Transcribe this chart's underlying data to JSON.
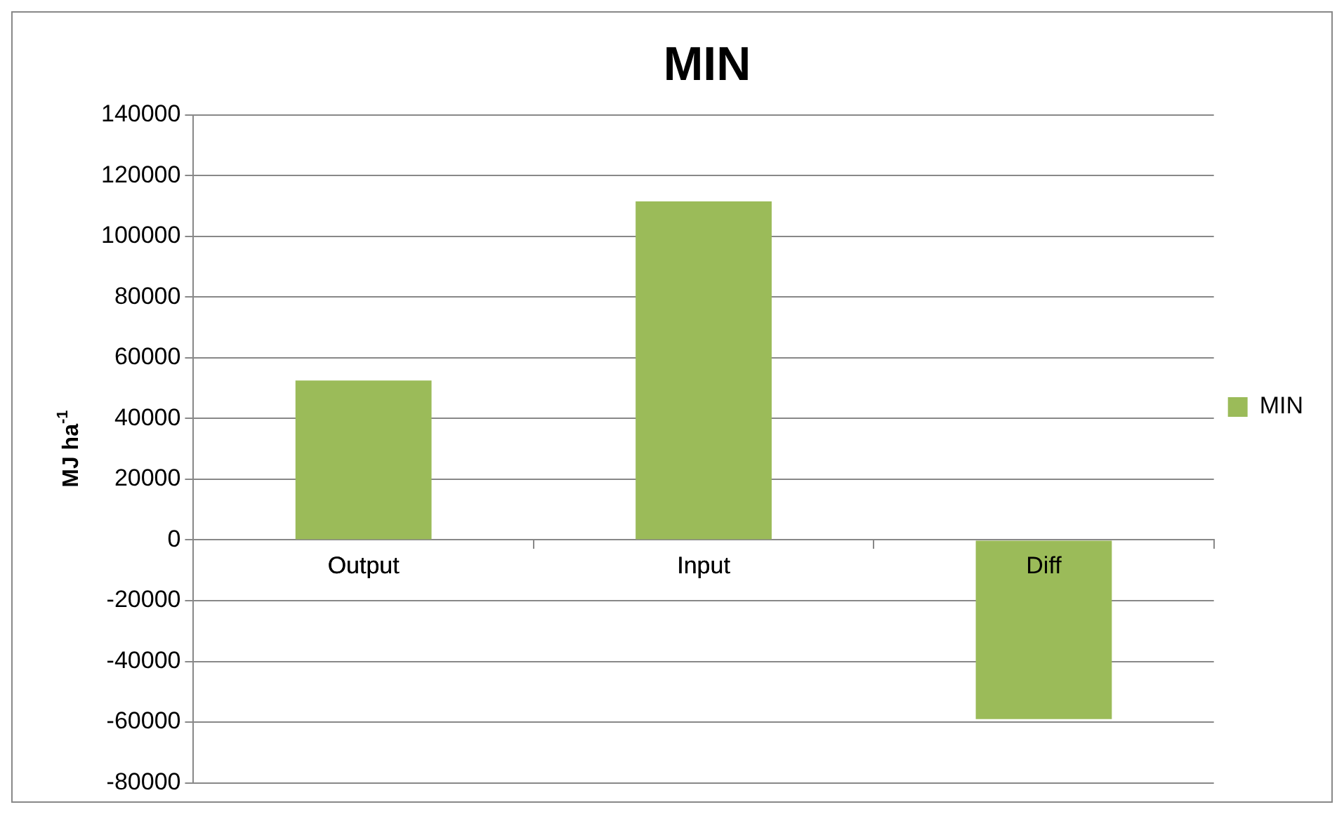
{
  "chart_data": {
    "type": "bar",
    "title": "MIN",
    "ylabel": "MJ ha$^{-1}$",
    "categories": [
      "Output",
      "Input",
      "Diff"
    ],
    "series": [
      {
        "name": "MIN",
        "color": "#9bbb59",
        "values": [
          52500,
          111500,
          -59000
        ]
      }
    ],
    "ylim": [
      -80000,
      140000
    ],
    "yticks": [
      -80000,
      -60000,
      -40000,
      -20000,
      0,
      20000,
      40000,
      60000,
      80000,
      100000,
      120000,
      140000
    ],
    "grid": "y",
    "legend": "right"
  }
}
